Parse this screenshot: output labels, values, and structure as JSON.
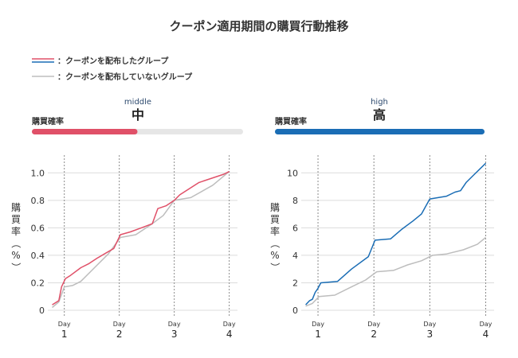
{
  "title": "クーポン適用期間の購買行動推移",
  "legend": [
    {
      "label": "：クーポンを配布したグループ",
      "colors": [
        "#e05068",
        "#1a6db5"
      ]
    },
    {
      "label": "：クーポンを配布していないグループ",
      "colors": [
        "#bdbdbd"
      ]
    }
  ],
  "chart_data": [
    {
      "type": "line",
      "level_en": "middle",
      "level_label": "中",
      "bar_label": "購買確率",
      "bar_fill_fraction": 0.5,
      "bar_color": "#e05068",
      "ylabel": "購買率（%）",
      "ylim": [
        0,
        1.1
      ],
      "yticks": [
        0,
        0.2,
        0.4,
        0.6,
        0.8,
        1.0
      ],
      "ytick_labels": [
        "0",
        "0.2",
        "0.4",
        "0.6",
        "0.8",
        "1.0"
      ],
      "xlim": [
        0.7,
        4.15
      ],
      "xticks": [
        1,
        2,
        3,
        4
      ],
      "xtick_prefix": "Day",
      "xtick_labels": [
        "1",
        "2",
        "3",
        "4"
      ],
      "series": [
        {
          "color": "#e05068",
          "points": [
            [
              0.78,
              0.04
            ],
            [
              0.82,
              0.05
            ],
            [
              0.9,
              0.07
            ],
            [
              0.95,
              0.17
            ],
            [
              1.02,
              0.23
            ],
            [
              1.1,
              0.25
            ],
            [
              1.3,
              0.31
            ],
            [
              1.45,
              0.34
            ],
            [
              1.6,
              0.38
            ],
            [
              1.9,
              0.45
            ],
            [
              2.02,
              0.55
            ],
            [
              2.2,
              0.57
            ],
            [
              2.4,
              0.6
            ],
            [
              2.6,
              0.63
            ],
            [
              2.7,
              0.74
            ],
            [
              2.85,
              0.76
            ],
            [
              3.0,
              0.8
            ],
            [
              3.1,
              0.84
            ],
            [
              3.45,
              0.93
            ],
            [
              3.9,
              0.99
            ],
            [
              4.0,
              1.01
            ]
          ]
        },
        {
          "color": "#bdbdbd",
          "points": [
            [
              0.78,
              0.02
            ],
            [
              0.9,
              0.06
            ],
            [
              1.0,
              0.17
            ],
            [
              1.15,
              0.18
            ],
            [
              1.3,
              0.21
            ],
            [
              1.5,
              0.29
            ],
            [
              1.8,
              0.41
            ],
            [
              2.02,
              0.53
            ],
            [
              2.3,
              0.55
            ],
            [
              2.6,
              0.63
            ],
            [
              2.8,
              0.69
            ],
            [
              3.0,
              0.8
            ],
            [
              3.3,
              0.82
            ],
            [
              3.7,
              0.91
            ],
            [
              4.0,
              1.01
            ]
          ]
        }
      ]
    },
    {
      "type": "line",
      "level_en": "high",
      "level_label": "高",
      "bar_label": "購買確率",
      "bar_fill_fraction": 1.0,
      "bar_color": "#1a6db5",
      "ylabel": "購買率（%）",
      "ylim": [
        0,
        11
      ],
      "yticks": [
        0,
        2,
        4,
        6,
        8,
        10
      ],
      "ytick_labels": [
        "0",
        "2",
        "4",
        "6",
        "8",
        "10"
      ],
      "xlim": [
        0.7,
        4.15
      ],
      "xticks": [
        1,
        2,
        3,
        4
      ],
      "xtick_prefix": "Day",
      "xtick_labels": [
        "1",
        "2",
        "3",
        "4"
      ],
      "series": [
        {
          "color": "#1a6db5",
          "points": [
            [
              0.78,
              0.4
            ],
            [
              0.85,
              0.7
            ],
            [
              0.9,
              0.8
            ],
            [
              0.95,
              1.3
            ],
            [
              1.0,
              1.6
            ],
            [
              1.05,
              2.0
            ],
            [
              1.35,
              2.1
            ],
            [
              1.6,
              3.0
            ],
            [
              1.9,
              3.9
            ],
            [
              2.02,
              5.1
            ],
            [
              2.3,
              5.2
            ],
            [
              2.5,
              5.9
            ],
            [
              2.7,
              6.5
            ],
            [
              2.85,
              7.0
            ],
            [
              3.0,
              8.1
            ],
            [
              3.3,
              8.3
            ],
            [
              3.45,
              8.6
            ],
            [
              3.55,
              8.7
            ],
            [
              3.65,
              9.3
            ],
            [
              3.8,
              9.9
            ],
            [
              4.0,
              10.7
            ]
          ]
        },
        {
          "color": "#bdbdbd",
          "points": [
            [
              0.78,
              0.3
            ],
            [
              0.9,
              0.5
            ],
            [
              1.02,
              1.0
            ],
            [
              1.3,
              1.1
            ],
            [
              1.6,
              1.7
            ],
            [
              1.85,
              2.2
            ],
            [
              2.05,
              2.8
            ],
            [
              2.35,
              2.9
            ],
            [
              2.6,
              3.3
            ],
            [
              2.85,
              3.6
            ],
            [
              3.05,
              4.0
            ],
            [
              3.3,
              4.1
            ],
            [
              3.6,
              4.4
            ],
            [
              3.85,
              4.8
            ],
            [
              4.0,
              5.3
            ]
          ]
        }
      ]
    }
  ]
}
